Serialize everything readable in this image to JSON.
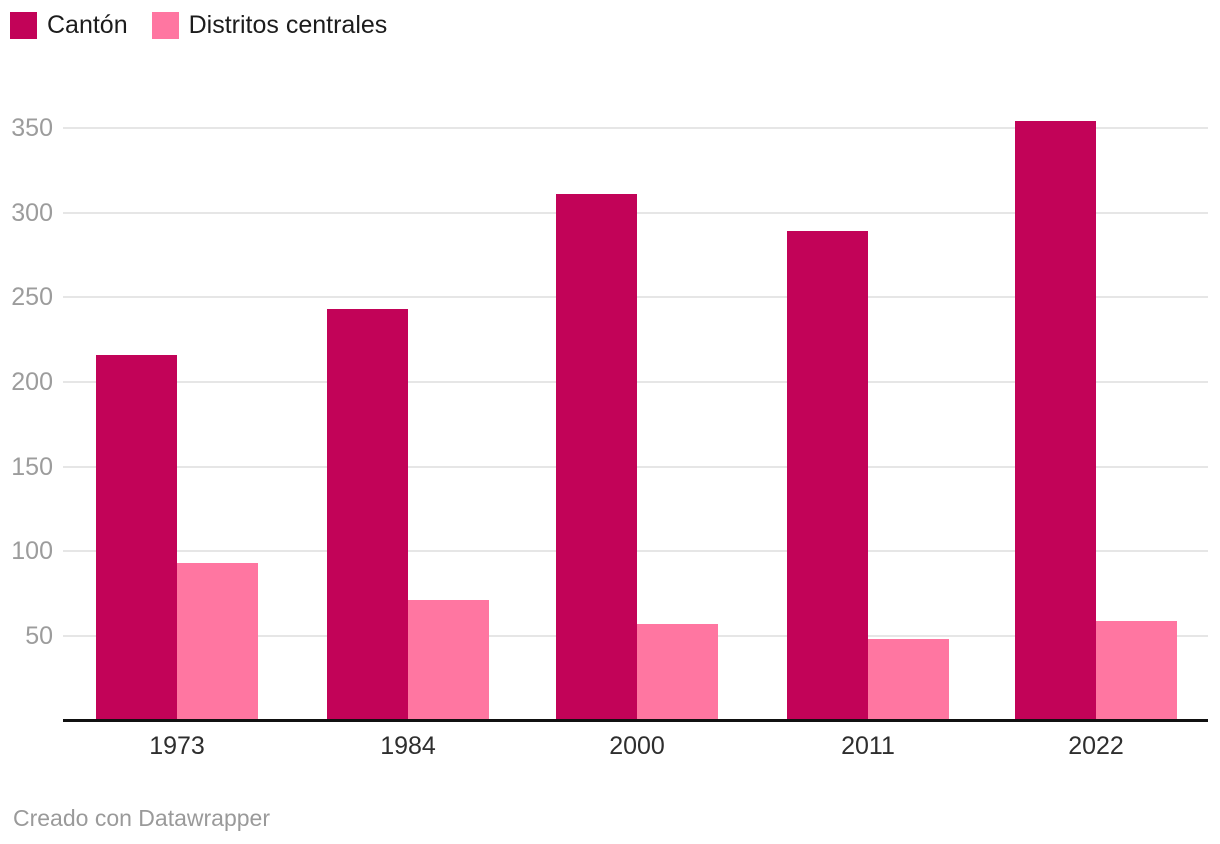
{
  "chart_data": {
    "type": "bar",
    "title": "",
    "xlabel": "",
    "ylabel": "",
    "categories": [
      "1973",
      "1984",
      "2000",
      "2011",
      "2022"
    ],
    "series": [
      {
        "name": "Cantón",
        "color": "#c20358",
        "values": [
          215,
          242,
          310,
          288,
          353
        ]
      },
      {
        "name": "Distritos centrales",
        "color": "#ff76a1",
        "values": [
          92,
          70,
          56,
          47,
          58
        ]
      }
    ],
    "ylim": [
      0,
      360
    ],
    "yticks": [
      50,
      100,
      150,
      200,
      250,
      300,
      350
    ],
    "grid": "horizontal",
    "legend_position": "top-left"
  },
  "footer": {
    "credit": "Creado con Datawrapper"
  },
  "colors": {
    "series_canton": "#c20358",
    "series_distritos": "#ff76a1",
    "gridline": "#e6e6e6",
    "y_tick_label": "#9c9c9c",
    "x_tick_label": "#2e2e2e",
    "legend_text": "#1c1c1c",
    "baseline": "#111111",
    "footer_text": "#9a9a9a",
    "background": "#ffffff"
  }
}
